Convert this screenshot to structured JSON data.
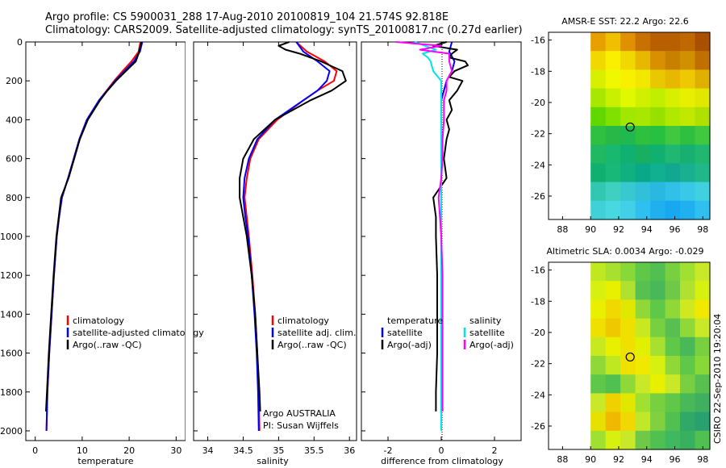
{
  "title": {
    "line1": "Argo profile: CS 5900031_288 17-Aug-2010 20100819_104 21.574S 92.818E",
    "line2": "Climatology: CARS2009. Satellite-adjusted climatology: synTS_20100817.nc (0.27d earlier)"
  },
  "credit": "CSIRO 22-Sep-2010 19:20:04",
  "colors": {
    "red": "#ff0000",
    "blue": "#0000ff",
    "black": "#000000",
    "cyan": "#00e5e5",
    "magenta": "#ff00ff"
  },
  "chart_data": [
    {
      "type": "line",
      "id": "temperature",
      "xlabel": "temperature",
      "ylabel": "",
      "xlim": [
        -2,
        32
      ],
      "ylim": [
        2050,
        0
      ],
      "y_reversed": true,
      "xticks": [
        0,
        10,
        20,
        30
      ],
      "yticks": [
        0,
        200,
        400,
        600,
        800,
        1000,
        1200,
        1400,
        1600,
        1800,
        2000
      ],
      "legend": {
        "entries": [
          "climatology",
          "satellite-adjusted climatology",
          "Argo(..raw -QC)"
        ],
        "colors": [
          "red",
          "blue",
          "black"
        ],
        "placement": "lower-right"
      },
      "series": [
        {
          "name": "climatology",
          "color": "red",
          "depth": [
            0,
            50,
            100,
            150,
            200,
            250,
            300,
            400,
            500,
            600,
            700,
            800,
            900,
            1000,
            1200,
            1400,
            1600,
            1800,
            2000
          ],
          "values": [
            22.4,
            22.0,
            20.5,
            18.6,
            16.8,
            15.2,
            13.6,
            11.0,
            9.4,
            8.2,
            7.0,
            5.7,
            5.1,
            4.6,
            4.0,
            3.5,
            3.0,
            2.6,
            2.4
          ]
        },
        {
          "name": "satellite-adjusted climatology",
          "color": "blue",
          "depth": [
            0,
            50,
            100,
            150,
            200,
            250,
            300,
            400,
            500,
            600,
            700,
            800,
            900,
            1000,
            1200,
            1400,
            1600,
            1800,
            2000
          ],
          "values": [
            22.8,
            22.3,
            21.0,
            19.0,
            17.0,
            15.3,
            13.6,
            11.0,
            9.4,
            8.2,
            7.0,
            5.7,
            5.1,
            4.6,
            4.0,
            3.5,
            3.0,
            2.6,
            2.4
          ]
        },
        {
          "name": "Argo(..raw -QC)",
          "color": "black",
          "depth": [
            0,
            30,
            60,
            100,
            150,
            200,
            250,
            300,
            400,
            500,
            600,
            700,
            800,
            900,
            1000,
            1200,
            1400,
            1600,
            1800,
            1900
          ],
          "values": [
            22.6,
            22.3,
            22.0,
            21.4,
            19.3,
            17.2,
            15.4,
            13.8,
            11.2,
            9.5,
            8.3,
            7.1,
            5.5,
            5.0,
            4.5,
            3.9,
            3.4,
            2.9,
            2.5,
            2.3
          ]
        }
      ]
    },
    {
      "type": "line",
      "id": "salinity",
      "xlabel": "salinity",
      "ylabel": "",
      "xlim": [
        33.8,
        36.1
      ],
      "ylim": [
        2050,
        0
      ],
      "y_reversed": true,
      "xticks": [
        34,
        34.5,
        35,
        35.5,
        36
      ],
      "legend": {
        "entries": [
          "climatology",
          "satellite adj. clim.",
          "Argo(..raw -QC)"
        ],
        "colors": [
          "red",
          "blue",
          "black"
        ],
        "placement": "lower-right"
      },
      "annotation": {
        "line1": "Argo AUSTRALIA",
        "line2": "PI: Susan Wijffels"
      },
      "series": [
        {
          "name": "climatology",
          "color": "red",
          "depth": [
            0,
            50,
            100,
            150,
            200,
            250,
            300,
            400,
            500,
            600,
            700,
            800,
            900,
            1000,
            1200,
            1400,
            1600,
            1800,
            2000
          ],
          "values": [
            35.25,
            35.4,
            35.65,
            35.82,
            35.78,
            35.55,
            35.35,
            34.98,
            34.72,
            34.6,
            34.55,
            34.52,
            34.55,
            34.58,
            34.63,
            34.67,
            34.7,
            34.72,
            34.73
          ]
        },
        {
          "name": "satellite adj. clim.",
          "color": "blue",
          "depth": [
            0,
            50,
            100,
            150,
            200,
            250,
            300,
            400,
            500,
            600,
            700,
            800,
            900,
            1000,
            1200,
            1400,
            1600,
            1800,
            2000
          ],
          "values": [
            35.25,
            35.35,
            35.55,
            35.72,
            35.68,
            35.55,
            35.35,
            34.95,
            34.7,
            34.58,
            34.52,
            34.5,
            34.53,
            34.57,
            34.62,
            34.66,
            34.69,
            34.71,
            34.72
          ]
        },
        {
          "name": "Argo(..raw -QC)",
          "color": "black",
          "depth": [
            0,
            20,
            40,
            60,
            100,
            150,
            200,
            250,
            300,
            400,
            500,
            600,
            700,
            800,
            900,
            1000,
            1200,
            1400,
            1600,
            1800,
            1900
          ],
          "values": [
            35.15,
            35.0,
            35.1,
            35.3,
            35.6,
            35.9,
            35.95,
            35.75,
            35.45,
            34.95,
            34.65,
            34.5,
            34.45,
            34.45,
            34.5,
            34.55,
            34.62,
            34.67,
            34.7,
            34.73,
            34.74
          ]
        }
      ]
    },
    {
      "type": "line",
      "id": "difference",
      "xlabel": "difference from climatology",
      "ylabel": "",
      "xlim": [
        -3,
        3
      ],
      "ylim": [
        2050,
        0
      ],
      "y_reversed": true,
      "xticks": [
        -2,
        0,
        2
      ],
      "legend": {
        "temperature": {
          "title": "temperature",
          "entries": [
            "satellite",
            "Argo(-adj)"
          ],
          "colors": [
            "blue",
            "black"
          ]
        },
        "salinity": {
          "title": "salinity",
          "entries": [
            "satellite",
            "Argo(-adj)"
          ],
          "colors": [
            "cyan",
            "magenta"
          ]
        },
        "placement": "lower-center"
      },
      "series": [
        {
          "name": "temperature satellite",
          "color": "blue",
          "depth": [
            0,
            50,
            100,
            150,
            200,
            300,
            400,
            600,
            800,
            1000,
            1400,
            1800,
            1900
          ],
          "values": [
            0.4,
            0.3,
            0.5,
            0.4,
            0.2,
            0.0,
            0.0,
            0.0,
            0.0,
            0.0,
            0.0,
            0.0,
            0.0
          ]
        },
        {
          "name": "temperature Argo(-adj)",
          "color": "black",
          "depth": [
            0,
            20,
            40,
            60,
            80,
            100,
            120,
            150,
            180,
            200,
            250,
            300,
            350,
            400,
            450,
            500,
            600,
            700,
            800,
            900,
            1000,
            1200,
            1400,
            1600,
            1800,
            1900
          ],
          "values": [
            0.2,
            -0.3,
            0.6,
            0.4,
            0.3,
            0.9,
            1.0,
            0.5,
            0.3,
            0.8,
            0.6,
            0.3,
            0.4,
            0.2,
            0.3,
            0.2,
            0.1,
            0.2,
            -0.3,
            -0.2,
            -0.2,
            -0.15,
            -0.15,
            -0.15,
            -0.2,
            -0.2
          ]
        },
        {
          "name": "salinity satellite",
          "color": "cyan",
          "depth": [
            0,
            20,
            40,
            60,
            80,
            100,
            150,
            200,
            300,
            400,
            600,
            800,
            1000,
            1400,
            1800,
            2000
          ],
          "values": [
            -1.0,
            -0.6,
            -0.2,
            -0.7,
            -0.5,
            -0.4,
            -0.3,
            0.0,
            0.0,
            0.0,
            0.0,
            0.0,
            0.0,
            0.0,
            0.0,
            0.0
          ]
        },
        {
          "name": "salinity Argo(-adj)",
          "color": "magenta",
          "depth": [
            0,
            20,
            40,
            60,
            100,
            150,
            200,
            250,
            300,
            400,
            500,
            600,
            700,
            800,
            900,
            1000,
            1200,
            1400,
            1600,
            1800,
            1900
          ],
          "values": [
            -1.7,
            0.0,
            -0.8,
            0.3,
            0.3,
            0.4,
            0.2,
            0.2,
            0.1,
            0.1,
            0.05,
            0.05,
            0.0,
            -0.1,
            -0.05,
            0.0,
            0.05,
            0.05,
            0.05,
            0.05,
            0.05
          ]
        }
      ]
    },
    {
      "type": "heatmap",
      "id": "sst-map",
      "title": "AMSR-E SST: 22.2 Argo: 22.6",
      "xlim": [
        87,
        98.5
      ],
      "ylim": [
        -27.5,
        -15.5
      ],
      "xticks": [
        88,
        90,
        92,
        94,
        96,
        98
      ],
      "yticks": [
        -16,
        -18,
        -20,
        -22,
        -24,
        -26
      ],
      "data_region_lon": [
        90,
        98.5
      ],
      "palette_rows": [
        [
          "#e8a000",
          "#f0c000",
          "#e09000",
          "#c87000",
          "#b86000",
          "#b86000",
          "#c06800",
          "#a85000"
        ],
        [
          "#f0d800",
          "#f8f000",
          "#f0d800",
          "#e8b800",
          "#d89000",
          "#c88000",
          "#d09000",
          "#c07000"
        ],
        [
          "#d8f000",
          "#f0f800",
          "#f8f000",
          "#f0e800",
          "#e8c800",
          "#e8b800",
          "#f0c800",
          "#e0b000"
        ],
        [
          "#a8e800",
          "#c8f000",
          "#e0f800",
          "#d0f000",
          "#c0f000",
          "#d8f000",
          "#e8f000",
          "#e0e800"
        ],
        [
          "#60d800",
          "#80e000",
          "#a0e800",
          "#a8e800",
          "#98e000",
          "#b0e800",
          "#c0e800",
          "#b0e000"
        ],
        [
          "#30c040",
          "#28b848",
          "#20b850",
          "#30c040",
          "#28c040",
          "#40c840",
          "#30c040",
          "#40c840"
        ],
        [
          "#20b860",
          "#18b870",
          "#10b070",
          "#18b060",
          "#10b070",
          "#20b870",
          "#18b070",
          "#20b870"
        ],
        [
          "#10b070",
          "#18b878",
          "#10b080",
          "#08a888",
          "#10b090",
          "#10a890",
          "#18b090",
          "#20b888"
        ],
        [
          "#30c8b0",
          "#40d0c0",
          "#38c8d0",
          "#30c0d8",
          "#28b8e0",
          "#30c0e8",
          "#38c8e8",
          "#40d0e0"
        ],
        [
          "#40d0d8",
          "#48d8e0",
          "#40d0e8",
          "#30c0f0",
          "#20b0f0",
          "#18a8f0",
          "#20b0f0",
          "#30c0f0"
        ]
      ],
      "marker": {
        "lon": 92.818,
        "lat": -21.574
      }
    },
    {
      "type": "heatmap",
      "id": "sla-map",
      "title": "Altimetric SLA: 0.0034 Argo: -0.029",
      "xlim": [
        87,
        98.5
      ],
      "ylim": [
        -27.5,
        -15.5
      ],
      "xticks": [
        88,
        90,
        92,
        94,
        96,
        98
      ],
      "yticks": [
        -16,
        -18,
        -20,
        -22,
        -24,
        -26
      ],
      "data_region_lon": [
        90,
        98.5
      ],
      "palette_rows": [
        [
          "#c0e820",
          "#a8e030",
          "#88d838",
          "#60c848",
          "#50c050",
          "#78d040",
          "#a0e030",
          "#c8e828"
        ],
        [
          "#d8f010",
          "#e8f000",
          "#b0e030",
          "#58c050",
          "#48b858",
          "#70c848",
          "#b0e030",
          "#d8f010"
        ],
        [
          "#e8f000",
          "#f0d800",
          "#e0e800",
          "#90d838",
          "#60c848",
          "#90d838",
          "#d0e820",
          "#f0e800"
        ],
        [
          "#f0e000",
          "#f0c800",
          "#f0e000",
          "#c8e820",
          "#78d040",
          "#58c050",
          "#90d838",
          "#c8e828"
        ],
        [
          "#c8e820",
          "#e8f000",
          "#f0e000",
          "#e0f000",
          "#a8e030",
          "#60c848",
          "#48b858",
          "#78d040"
        ],
        [
          "#90d838",
          "#c0e820",
          "#f0e000",
          "#f0e800",
          "#d8f010",
          "#90d838",
          "#60c848",
          "#88d838"
        ],
        [
          "#60c848",
          "#50c050",
          "#90d838",
          "#c8e828",
          "#e8f000",
          "#c8e828",
          "#78d040",
          "#58c050"
        ],
        [
          "#c8e828",
          "#f0d000",
          "#e0e800",
          "#a0e030",
          "#78d040",
          "#60c848",
          "#48b858",
          "#40b060"
        ],
        [
          "#e8e000",
          "#f0b800",
          "#f0d800",
          "#c0e828",
          "#80d040",
          "#50c050",
          "#30a868",
          "#28a070"
        ],
        [
          "#a0e030",
          "#d8f010",
          "#c8e828",
          "#70c848",
          "#50c050",
          "#40b860",
          "#38b060",
          "#50c050"
        ]
      ],
      "marker": {
        "lon": 92.818,
        "lat": -21.574
      }
    }
  ]
}
